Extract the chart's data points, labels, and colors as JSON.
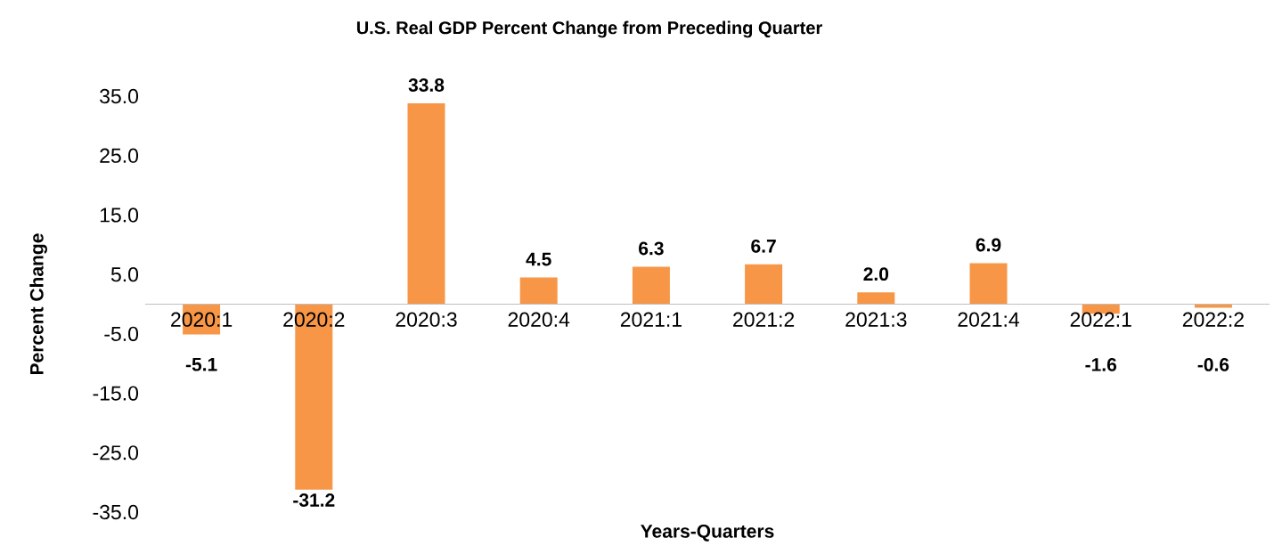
{
  "chart_data": {
    "type": "bar",
    "title": "U.S. Real GDP Percent Change from Preceding Quarter",
    "xlabel": "Years-Quarters",
    "ylabel": "Percent Change",
    "categories": [
      "2020:1",
      "2020:2",
      "2020:3",
      "2020:4",
      "2021:1",
      "2021:2",
      "2021:3",
      "2021:4",
      "2022:1",
      "2022:2"
    ],
    "values": [
      -5.1,
      -31.2,
      33.8,
      4.5,
      6.3,
      6.7,
      2.0,
      6.9,
      -1.6,
      -0.6
    ],
    "color": "#f79646",
    "ylim": [
      -35,
      35
    ],
    "yticks": [
      {
        "value": -35,
        "label": "-35.0"
      },
      {
        "value": -25,
        "label": "-25.0"
      },
      {
        "value": -15,
        "label": "-15.0"
      },
      {
        "value": -5,
        "label": "-5.0"
      },
      {
        "value": 5,
        "label": "5.0"
      },
      {
        "value": 15,
        "label": "15.0"
      },
      {
        "value": 25,
        "label": "25.0"
      },
      {
        "value": 35,
        "label": "35.0"
      }
    ],
    "value_labels": [
      "-5.1",
      "-31.2",
      "33.8",
      "4.5",
      "6.3",
      "6.7",
      "2.0",
      "6.9",
      "-1.6",
      "-0.6"
    ],
    "grid": false
  }
}
